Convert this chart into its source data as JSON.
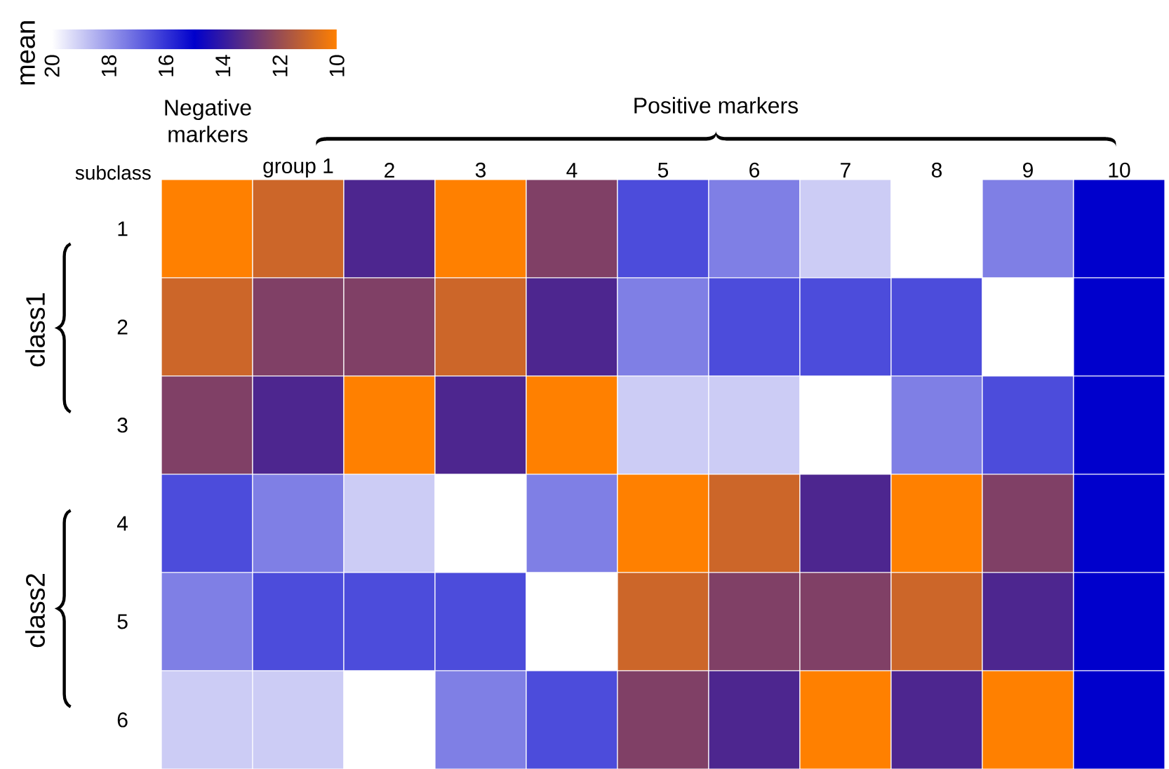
{
  "chart_data": {
    "type": "heatmap",
    "ylabel": "subclass",
    "clabel": "mean",
    "categories": [
      null,
      "group 1",
      "2",
      "3",
      "4",
      "5",
      "6",
      "7",
      "8",
      "9",
      "10"
    ],
    "y_categories": [
      "1",
      "2",
      "3",
      "4",
      "5",
      "6"
    ],
    "cells": [
      [
        10,
        11,
        13.5,
        10,
        12.5,
        16.5,
        17.5,
        19,
        20,
        17.5,
        15
      ],
      [
        11,
        12.5,
        12.5,
        11,
        13.5,
        17.5,
        16.5,
        16.5,
        16.5,
        20,
        15
      ],
      [
        12.5,
        13.5,
        10,
        13.5,
        10,
        19,
        19,
        20,
        17.5,
        16.5,
        15
      ],
      [
        16.5,
        17.5,
        19,
        20,
        17.5,
        10,
        11,
        13.5,
        10,
        12.5,
        15
      ],
      [
        17.5,
        16.5,
        16.5,
        16.5,
        20,
        11,
        12.5,
        12.5,
        11,
        13.5,
        15
      ],
      [
        19,
        19,
        20,
        17.5,
        16.5,
        12.5,
        13.5,
        10,
        13.5,
        10,
        15
      ]
    ],
    "clim": [
      20,
      10
    ],
    "cticks": [
      20,
      18,
      16,
      14,
      12,
      10
    ],
    "annotations": [
      "Negative markers",
      "Positive markers",
      "class1",
      "class2"
    ]
  }
}
